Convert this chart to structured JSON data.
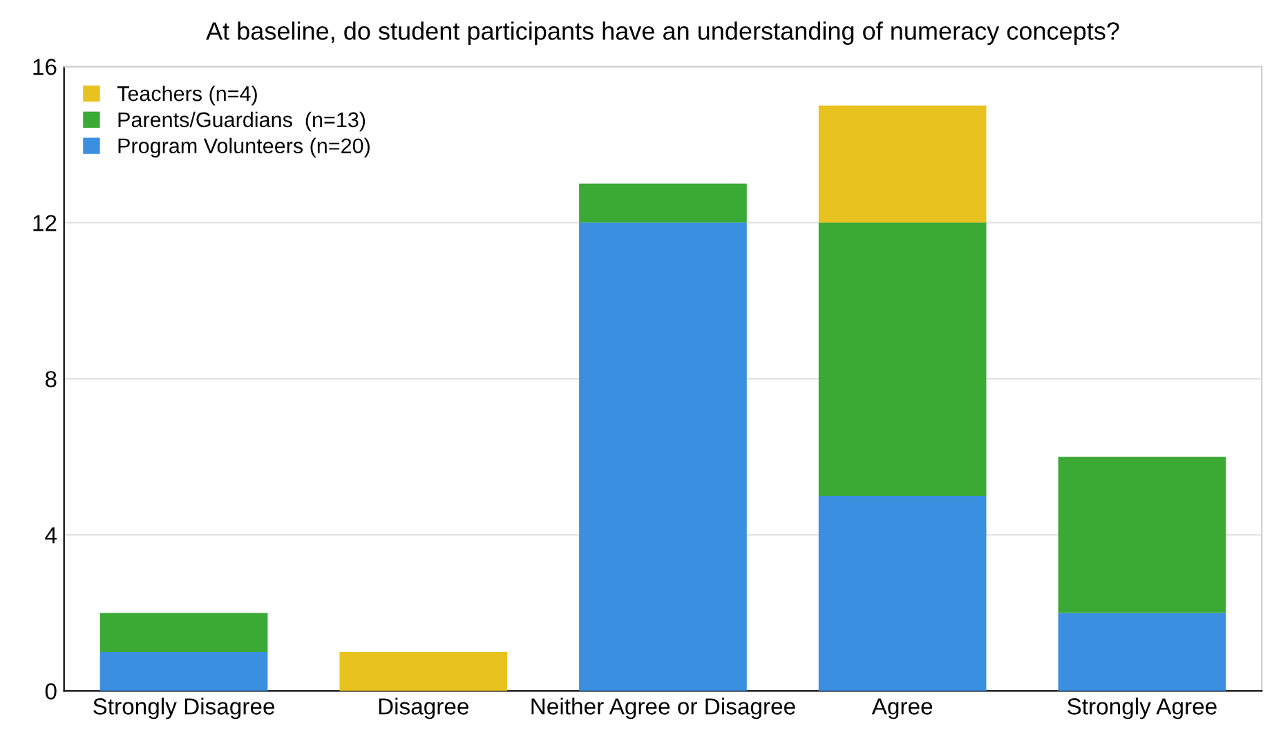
{
  "chart_data": {
    "type": "bar",
    "title": "At baseline, do student participants have an understanding of numeracy concepts?",
    "categories": [
      "Strongly Disagree",
      "Disagree",
      "Neither Agree or Disagree",
      "Agree",
      "Strongly Agree"
    ],
    "stacked": true,
    "series": [
      {
        "name": "Program Volunteers (n=20)",
        "color": "#3a8fe0",
        "values": [
          1,
          0,
          12,
          5,
          2
        ]
      },
      {
        "name": "Parents/Guardians  (n=13)",
        "color": "#3aaa35",
        "values": [
          1,
          0,
          1,
          7,
          4
        ]
      },
      {
        "name": "Teachers (n=4)",
        "color": "#e8c21e",
        "values": [
          0,
          1,
          0,
          3,
          0
        ]
      }
    ],
    "ylim": [
      0,
      16
    ],
    "yticks": [
      0,
      4,
      8,
      12,
      16
    ],
    "grid": "y",
    "legend": "top left"
  }
}
